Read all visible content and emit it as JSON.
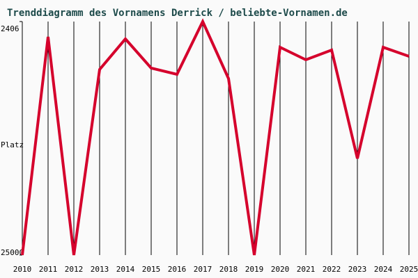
{
  "chart_data": {
    "type": "line",
    "title": "Trenddiagramm des Vornamens Derrick / beliebte-Vornamen.de",
    "y_label": "Platz",
    "x": [
      2010,
      2011,
      2012,
      2013,
      2014,
      2015,
      2016,
      2017,
      2018,
      2019,
      2020,
      2021,
      2022,
      2023,
      2024,
      2025
    ],
    "values": [
      25000,
      3885,
      25000,
      7046,
      4087,
      6911,
      7516,
      2406,
      7920,
      25000,
      4894,
      6104,
      5163,
      15653,
      4894,
      5768
    ],
    "color": "#d5002c",
    "xlim": [
      2010,
      2025
    ],
    "xticks": [
      2010,
      2011,
      2012,
      2013,
      2014,
      2015,
      2016,
      2017,
      2018,
      2019,
      2020,
      2021,
      2022,
      2023,
      2024,
      2025
    ],
    "ylim": [
      25000,
      2406
    ],
    "yticks": [
      2406,
      25000
    ],
    "grid": true
  }
}
